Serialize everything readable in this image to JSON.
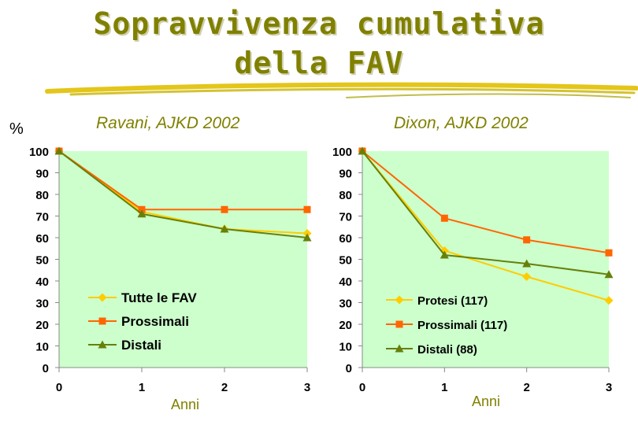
{
  "title": {
    "line1": "Sopravvivenza cumulativa",
    "line2": "della FAV"
  },
  "y_unit_label": "%",
  "colors": {
    "title": "#808000",
    "plot_bg": "#ccffcc",
    "tutte": "#ffcc00",
    "protesi": "#ffcc00",
    "prossimali": "#ff6600",
    "distali": "#66800a",
    "axis": "#888888"
  },
  "chart_data": [
    {
      "type": "line",
      "title": "Ravani, AJKD 2002",
      "xlabel": "Anni",
      "ylabel": "%",
      "x": [
        0,
        1,
        2,
        3
      ],
      "xlim": [
        0,
        3
      ],
      "ylim": [
        0,
        100
      ],
      "yticks": [
        0,
        10,
        20,
        30,
        40,
        50,
        60,
        70,
        80,
        90,
        100
      ],
      "xticks": [
        0,
        1,
        2,
        3
      ],
      "legend_position": "lower-left",
      "series": [
        {
          "name": "Tutte le FAV",
          "values": [
            100,
            72,
            64,
            62
          ],
          "marker": "diamond",
          "color": "#ffcc00"
        },
        {
          "name": "Prossimali",
          "values": [
            100,
            73,
            73,
            73
          ],
          "marker": "square",
          "color": "#ff6600"
        },
        {
          "name": "Distali",
          "values": [
            100,
            71,
            64,
            60
          ],
          "marker": "triangle",
          "color": "#66800a"
        }
      ]
    },
    {
      "type": "line",
      "title": "Dixon, AJKD 2002",
      "xlabel": "Anni",
      "ylabel": "",
      "x": [
        0,
        1,
        2,
        3
      ],
      "xlim": [
        0,
        3
      ],
      "ylim": [
        0,
        100
      ],
      "yticks": [
        0,
        10,
        20,
        30,
        40,
        50,
        60,
        70,
        80,
        90,
        100
      ],
      "xticks": [
        0,
        1,
        2,
        3
      ],
      "legend_position": "lower-left",
      "series": [
        {
          "name": "Protesi (117)",
          "values": [
            100,
            54,
            42,
            31
          ],
          "marker": "diamond",
          "color": "#ffcc00"
        },
        {
          "name": "Prossimali (117)",
          "values": [
            100,
            69,
            59,
            53
          ],
          "marker": "square",
          "color": "#ff6600"
        },
        {
          "name": "Distali (88)",
          "values": [
            100,
            52,
            48,
            43
          ],
          "marker": "triangle",
          "color": "#66800a"
        }
      ]
    }
  ]
}
